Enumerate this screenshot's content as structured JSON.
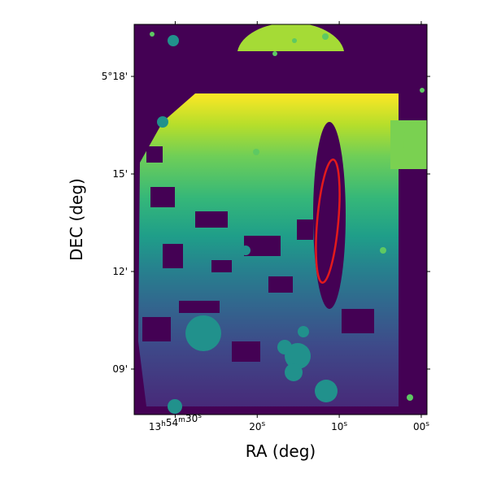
{
  "chart_data": {
    "type": "image",
    "xlabel": "RA (deg)",
    "ylabel": "DEC (deg)",
    "xlim": [
      35.0,
      -0.7
    ],
    "ylim": [
      7.6,
      19.6
    ],
    "xticks": [
      {
        "value": 30,
        "label": "13h54m30s"
      },
      {
        "value": 20,
        "label": "20s"
      },
      {
        "value": 10,
        "label": "10s"
      },
      {
        "value": 0,
        "label": "00s"
      }
    ],
    "yticks": [
      {
        "value": 18,
        "label": "5°18'"
      },
      {
        "value": 15,
        "label": "15'"
      },
      {
        "value": 12,
        "label": "12'"
      },
      {
        "value": 9,
        "label": "09'"
      }
    ]
  }
}
